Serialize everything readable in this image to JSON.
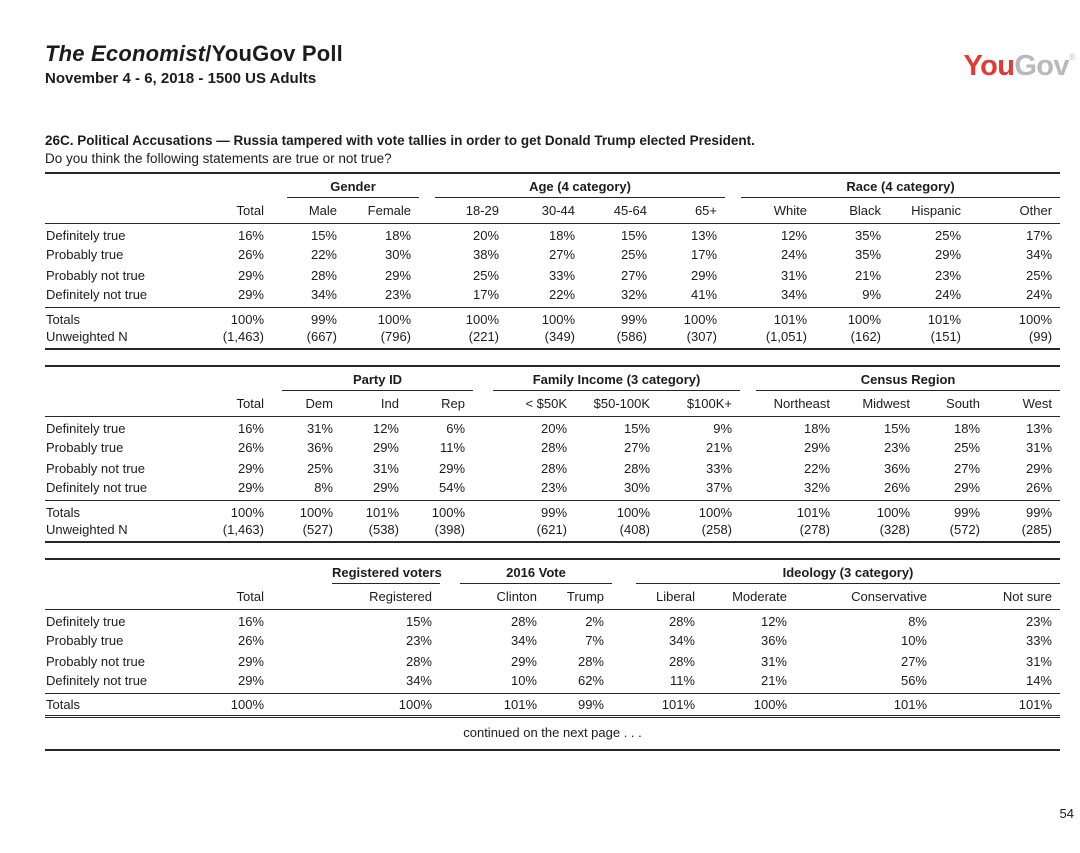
{
  "header": {
    "title_em": "The Economist",
    "title_rest": "/YouGov Poll",
    "dates": "November 4 - 6, 2018 - 1500 US Adults"
  },
  "logo": {
    "you": "You",
    "gov": "Gov",
    "mark": "®",
    "you_color": "#e23b34",
    "gov_color": "#b9b9b9"
  },
  "question": {
    "title": "26C. Political Accusations — Russia tampered with vote tallies in order to get Donald Trump elected President.",
    "prompt": "Do you think the following statements are true or not true?"
  },
  "row_labels": [
    "Definitely true",
    "Probably true",
    "Probably not true",
    "Definitely not true"
  ],
  "totals_label": "Totals",
  "unweighted_label": "Unweighted N",
  "continued": "continued on the next page . . .",
  "page": {
    "number": "54"
  },
  "tables": [
    {
      "groups": [
        {
          "label": "",
          "columns": [
            "Total"
          ]
        },
        {
          "label": "Gender",
          "columns": [
            "Male",
            "Female"
          ]
        },
        {
          "label": "Age (4 category)",
          "columns": [
            "18-29",
            "30-44",
            "45-64",
            "65+"
          ]
        },
        {
          "label": "Race (4 category)",
          "columns": [
            "White",
            "Black",
            "Hispanic",
            "Other"
          ]
        }
      ],
      "rows": [
        [
          "16%",
          "15%",
          "18%",
          "20%",
          "18%",
          "15%",
          "13%",
          "12%",
          "35%",
          "25%",
          "17%"
        ],
        [
          "26%",
          "22%",
          "30%",
          "38%",
          "27%",
          "25%",
          "17%",
          "24%",
          "35%",
          "29%",
          "34%"
        ],
        [
          "29%",
          "28%",
          "29%",
          "25%",
          "33%",
          "27%",
          "29%",
          "31%",
          "21%",
          "23%",
          "25%"
        ],
        [
          "29%",
          "34%",
          "23%",
          "17%",
          "22%",
          "32%",
          "41%",
          "34%",
          "9%",
          "24%",
          "24%"
        ]
      ],
      "totals": [
        "100%",
        "99%",
        "100%",
        "100%",
        "100%",
        "99%",
        "100%",
        "101%",
        "100%",
        "101%",
        "100%"
      ],
      "unweighted": [
        "(1,463)",
        "(667)",
        "(796)",
        "(221)",
        "(349)",
        "(586)",
        "(307)",
        "(1,051)",
        "(162)",
        "(151)",
        "(99)"
      ]
    },
    {
      "groups": [
        {
          "label": "",
          "columns": [
            "Total"
          ]
        },
        {
          "label": "Party ID",
          "columns": [
            "Dem",
            "Ind",
            "Rep"
          ]
        },
        {
          "label": "Family Income (3 category)",
          "columns": [
            "< $50K",
            "$50-100K",
            "$100K+"
          ]
        },
        {
          "label": "Census Region",
          "columns": [
            "Northeast",
            "Midwest",
            "South",
            "West"
          ]
        }
      ],
      "rows": [
        [
          "16%",
          "31%",
          "12%",
          "6%",
          "20%",
          "15%",
          "9%",
          "18%",
          "15%",
          "18%",
          "13%"
        ],
        [
          "26%",
          "36%",
          "29%",
          "11%",
          "28%",
          "27%",
          "21%",
          "29%",
          "23%",
          "25%",
          "31%"
        ],
        [
          "29%",
          "25%",
          "31%",
          "29%",
          "28%",
          "28%",
          "33%",
          "22%",
          "36%",
          "27%",
          "29%"
        ],
        [
          "29%",
          "8%",
          "29%",
          "54%",
          "23%",
          "30%",
          "37%",
          "32%",
          "26%",
          "29%",
          "26%"
        ]
      ],
      "totals": [
        "100%",
        "100%",
        "101%",
        "100%",
        "99%",
        "100%",
        "100%",
        "101%",
        "100%",
        "99%",
        "99%"
      ],
      "unweighted": [
        "(1,463)",
        "(527)",
        "(538)",
        "(398)",
        "(621)",
        "(408)",
        "(258)",
        "(278)",
        "(328)",
        "(572)",
        "(285)"
      ]
    },
    {
      "groups": [
        {
          "label": "",
          "columns": [
            "Total"
          ]
        },
        {
          "label": "Registered voters",
          "columns": [
            "Registered"
          ]
        },
        {
          "label": "2016 Vote",
          "columns": [
            "Clinton",
            "Trump"
          ]
        },
        {
          "label": "Ideology (3 category)",
          "columns": [
            "Liberal",
            "Moderate",
            "Conservative",
            "Not sure"
          ]
        }
      ],
      "rows": [
        [
          "16%",
          "15%",
          "28%",
          "2%",
          "28%",
          "12%",
          "8%",
          "23%"
        ],
        [
          "26%",
          "23%",
          "34%",
          "7%",
          "34%",
          "36%",
          "10%",
          "33%"
        ],
        [
          "29%",
          "28%",
          "29%",
          "28%",
          "28%",
          "31%",
          "27%",
          "31%"
        ],
        [
          "29%",
          "34%",
          "10%",
          "62%",
          "11%",
          "21%",
          "56%",
          "14%"
        ]
      ],
      "totals": [
        "100%",
        "100%",
        "101%",
        "99%",
        "101%",
        "100%",
        "101%",
        "101%"
      ],
      "unweighted": null,
      "continued": true
    }
  ]
}
